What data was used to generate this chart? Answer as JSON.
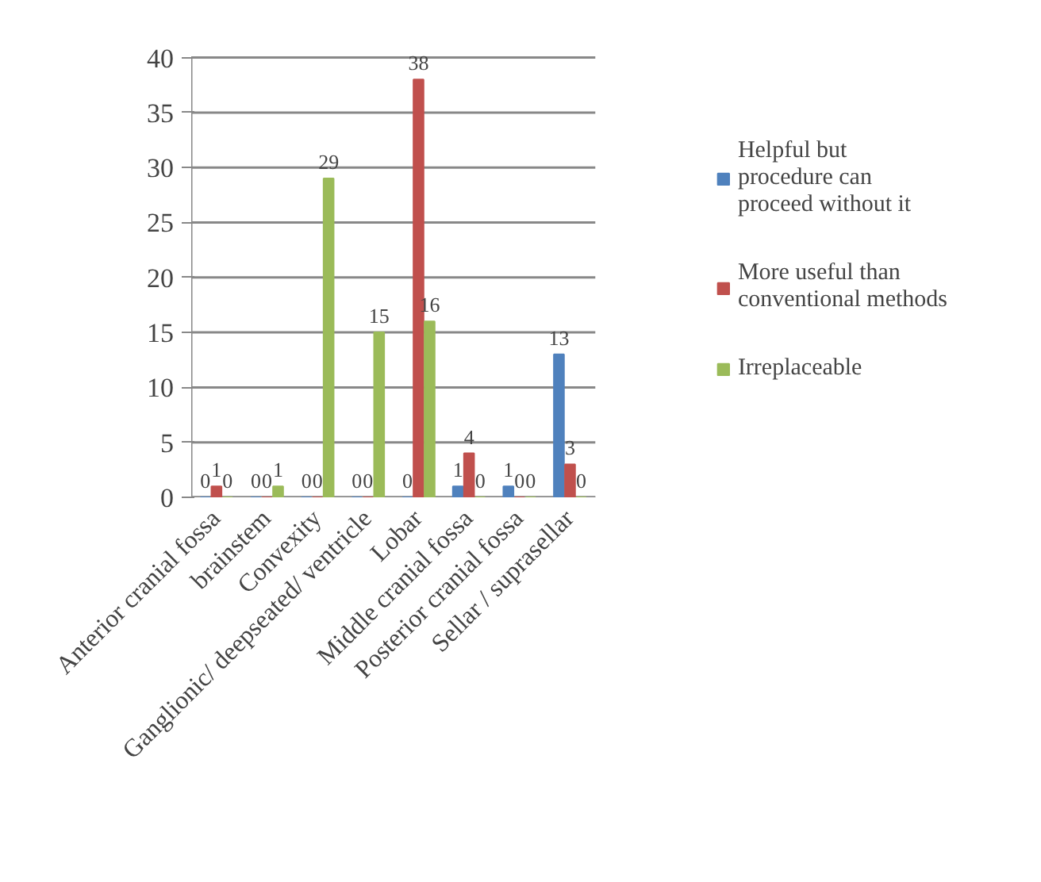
{
  "chart_data": {
    "type": "bar",
    "categories": [
      "Anterior cranial fossa",
      "brainstem",
      "Convexity",
      "Ganglionic/ deepseated/ ventricle",
      "Lobar",
      "Middle cranial fossa",
      "Posterior cranial fossa",
      "Sellar / suprasellar"
    ],
    "series": [
      {
        "name": "Helpful but procedure can proceed without it",
        "color": "#4f81bd",
        "values": [
          0,
          0,
          0,
          0,
          0,
          1,
          1,
          13
        ]
      },
      {
        "name": "More useful than conventional methods",
        "color": "#c0504d",
        "values": [
          1,
          0,
          0,
          0,
          38,
          4,
          0,
          3
        ]
      },
      {
        "name": "Irreplaceable",
        "color": "#9bbb59",
        "values": [
          0,
          1,
          29,
          15,
          16,
          0,
          0,
          0
        ]
      }
    ],
    "ylim": [
      0,
      40
    ],
    "yticks": [
      0,
      5,
      10,
      15,
      20,
      25,
      30,
      35,
      40
    ],
    "grid": "y",
    "legend": "right",
    "data_labels": true
  }
}
